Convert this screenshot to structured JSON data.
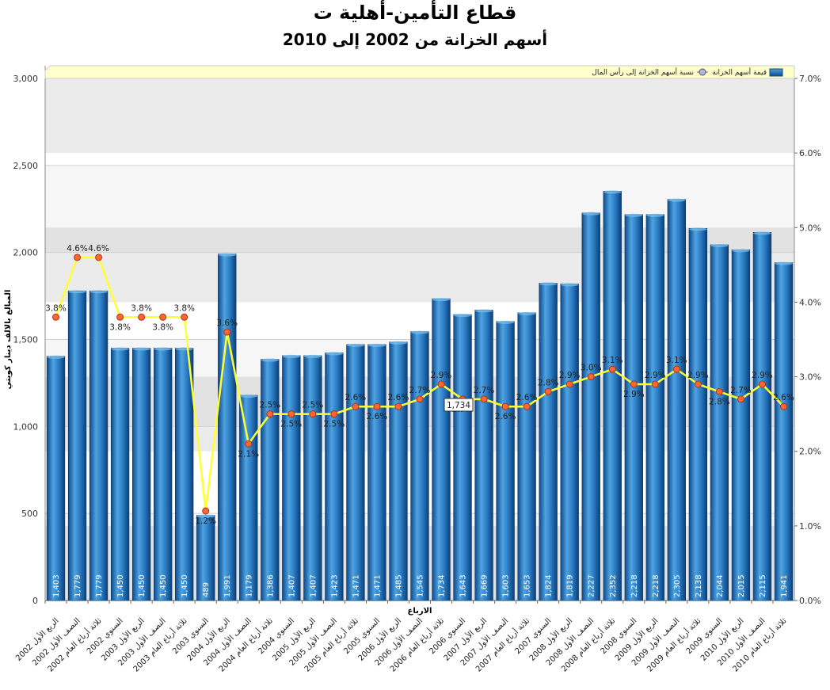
{
  "title": "قطاع التأمين-أهلية ت",
  "subtitle": "أسهم الخزانة من 2002 إلى 2010",
  "chart_data": {
    "type": "bar",
    "xlabel": "الارباع",
    "ylabel": "المبالغ بالالف دينار كويتي",
    "ylim": [
      0,
      3000
    ],
    "y2lim": [
      0,
      7.0
    ],
    "yticks": [
      "0",
      "500",
      "1,000",
      "1,500",
      "2,000",
      "2,500",
      "3,000"
    ],
    "y2ticks": [
      "0.0%",
      "1.0%",
      "2.0%",
      "3.0%",
      "4.0%",
      "5.0%",
      "6.0%",
      "7.0%"
    ],
    "legend_position": "top-right",
    "categories": [
      "الربع الأول 2002",
      "النصف الأول 2002",
      "ثلاثة أرباع العام 2002",
      "السنوي 2002",
      "الربع الأول 2003",
      "النصف الأول 2003",
      "ثلاثة أرباع العام 2003",
      "السنوي 2003",
      "الربع الأول 2004",
      "النصف الأول 2004",
      "ثلاثة أرباع العام 2004",
      "السنوي 2004",
      "الربع الأول 2005",
      "النصف الأول 2005",
      "ثلاثة أرباع العام 2005",
      "السنوي 2005",
      "الربع الأول 2006",
      "النصف الأول 2006",
      "ثلاثة أرباع العام 2006",
      "السنوي 2006",
      "الربع الأول 2007",
      "النصف الأول 2007",
      "ثلاثة أرباع العام 2007",
      "السنوي 2007",
      "الربع الأول 2008",
      "النصف الأول 2008",
      "ثلاثة أرباع العام 2008",
      "السنوي 2008",
      "الربع الأول 2009",
      "النصف الأول 2009",
      "ثلاثة أرباع العام 2009",
      "السنوي 2009",
      "الربع الأول 2010",
      "النصف الأول 2010",
      "ثلاثة أرباع العام 2010"
    ],
    "series": [
      {
        "name": "قيمة أسهم الخزانة",
        "type": "bar",
        "values": [
          1403,
          1779,
          1779,
          1450,
          1450,
          1450,
          1450,
          489,
          1991,
          1179,
          1386,
          1407,
          1407,
          1423,
          1471,
          1471,
          1485,
          1545,
          1734,
          1643,
          1669,
          1603,
          1653,
          1824,
          1819,
          2227,
          2352,
          2218,
          2218,
          2305,
          2138,
          2044,
          2015,
          2115,
          1941
        ],
        "labels": [
          "1,403",
          "1,779",
          "1,779",
          "1,450",
          "1,450",
          "1,450",
          "1,450",
          "489",
          "1,991",
          "1,179",
          "1,386",
          "1,407",
          "1,407",
          "1,423",
          "1,471",
          "1,471",
          "1,485",
          "1,545",
          "1,734",
          "1,643",
          "1,669",
          "1,603",
          "1,653",
          "1,824",
          "1,819",
          "2,227",
          "2,352",
          "2,218",
          "2,218",
          "2,305",
          "2,138",
          "2,044",
          "2,015",
          "2,115",
          "1,941"
        ]
      },
      {
        "name": "نسبة أسهم الخزانة إلى رأس المال",
        "type": "line",
        "axis": "right",
        "values": [
          3.8,
          4.6,
          4.6,
          3.8,
          3.8,
          3.8,
          3.8,
          1.2,
          3.6,
          2.1,
          2.5,
          2.5,
          2.5,
          2.5,
          2.6,
          2.6,
          2.6,
          2.7,
          2.9,
          2.7,
          2.7,
          2.6,
          2.6,
          2.8,
          2.9,
          3.0,
          3.1,
          2.9,
          2.9,
          3.1,
          2.9,
          2.8,
          2.7,
          2.9,
          2.6
        ],
        "labels": [
          "3.8%",
          "4.6%",
          "4.6%",
          "3.8%",
          "3.8%",
          "3.8%",
          "3.8%",
          "1.2%",
          "3.6%",
          "2.1%",
          "2.5%",
          "2.5%",
          "2.5%",
          "2.5%",
          "2.6%",
          "2.6%",
          "2.6%",
          "2.7%",
          "2.9%",
          "2.7%",
          "2.7%",
          "2.6%",
          "2.6%",
          "2.8%",
          "2.9%",
          "3.0%",
          "3.1%",
          "2.9%",
          "2.9%",
          "3.1%",
          "2.9%",
          "2.8%",
          "2.7%",
          "2.9%",
          "2.6%"
        ]
      }
    ],
    "tooltip": "1,734",
    "colors": {
      "bar": "#2a7cc4",
      "bar_dark": "#0d4a8c",
      "line": "#ffff33",
      "marker": "#ff6633",
      "legend_bg": "#ffffcc"
    }
  }
}
